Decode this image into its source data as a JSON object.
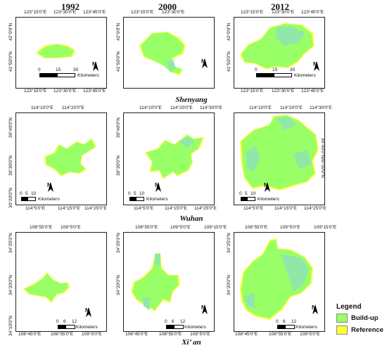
{
  "years": [
    "1992",
    "2000",
    "2012"
  ],
  "cities": [
    "Shenyang",
    "Wuhan",
    "Xi’ an"
  ],
  "colors": {
    "buildup": "#99ff66",
    "reference": "#ffff33"
  },
  "ticks": {
    "shenyang": {
      "top": [
        "123°15'0\"E",
        "123°30'0\"E",
        "123°45'0\"E"
      ],
      "left": [
        "42°0'0\"N",
        "41°50'0\"N",
        "41°40'0\"N"
      ]
    },
    "wuhan": {
      "top": [
        "114°10'0\"E",
        "114°20'0\"E",
        "114°30'0\"E"
      ],
      "bottom": [
        "114°5'0\"E",
        "114°15'0\"E",
        "114°25'0\"E"
      ],
      "left": [
        "30°40'0\"N",
        "30°30'0\"N",
        "30°20'0\"N"
      ]
    },
    "xian": {
      "top": [
        "108°55'0\"E",
        "109°5'0\"E",
        "109°15'0\"E"
      ],
      "bottom": [
        "108°45'0\"E",
        "108°55'0\"E",
        "109°5'0\"E"
      ],
      "left": [
        "34°25'0\"N",
        "34°20'0\"N",
        "34°10'0\"N"
      ]
    }
  },
  "scales": {
    "shenyang": {
      "labels": [
        "0",
        "15",
        "30"
      ],
      "unit": "Kilometers"
    },
    "wuhan": {
      "labels": [
        "0",
        "5",
        "10"
      ],
      "unit": "Kilometers"
    },
    "xian": {
      "labels": [
        "0",
        "6",
        "12"
      ],
      "unit": "Kilometers"
    }
  },
  "north_label": "N",
  "legend": {
    "title": "Legend",
    "items": [
      "Build-up",
      "Reference"
    ]
  }
}
